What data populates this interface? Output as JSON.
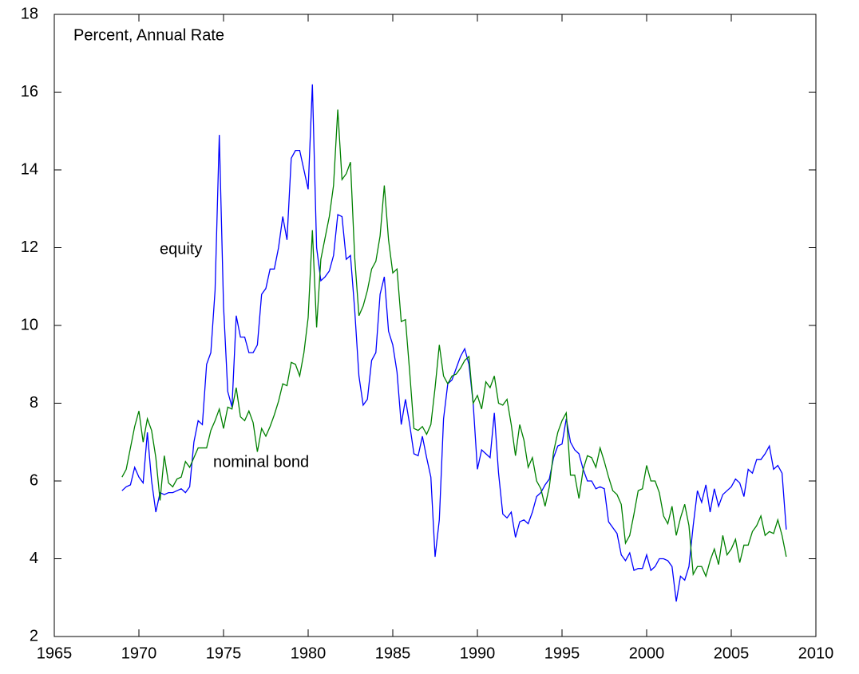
{
  "chart_data": {
    "type": "line",
    "title": "Percent, Annual Rate",
    "annotations": [
      "equity",
      "nominal bond"
    ],
    "x": [
      1969,
      1969.25,
      1969.5,
      1969.75,
      1970,
      1970.25,
      1970.5,
      1970.75,
      1971,
      1971.25,
      1971.5,
      1971.75,
      1972,
      1972.25,
      1972.5,
      1972.75,
      1973,
      1973.25,
      1973.5,
      1973.75,
      1974,
      1974.25,
      1974.5,
      1974.75,
      1975,
      1975.25,
      1975.5,
      1975.75,
      1976,
      1976.25,
      1976.5,
      1976.75,
      1977,
      1977.25,
      1977.5,
      1977.75,
      1978,
      1978.25,
      1978.5,
      1978.75,
      1979,
      1979.25,
      1979.5,
      1979.75,
      1980,
      1980.25,
      1980.5,
      1980.75,
      1981,
      1981.25,
      1981.5,
      1981.75,
      1982,
      1982.25,
      1982.5,
      1982.75,
      1983,
      1983.25,
      1983.5,
      1983.75,
      1984,
      1984.25,
      1984.5,
      1984.75,
      1985,
      1985.25,
      1985.5,
      1985.75,
      1986,
      1986.25,
      1986.5,
      1986.75,
      1987,
      1987.25,
      1987.5,
      1987.75,
      1988,
      1988.25,
      1988.5,
      1988.75,
      1989,
      1989.25,
      1989.5,
      1989.75,
      1990,
      1990.25,
      1990.5,
      1990.75,
      1991,
      1991.25,
      1991.5,
      1991.75,
      1992,
      1992.25,
      1992.5,
      1992.75,
      1993,
      1993.25,
      1993.5,
      1993.75,
      1994,
      1994.25,
      1994.5,
      1994.75,
      1995,
      1995.25,
      1995.5,
      1995.75,
      1996,
      1996.25,
      1996.5,
      1996.75,
      1997,
      1997.25,
      1997.5,
      1997.75,
      1998,
      1998.25,
      1998.5,
      1998.75,
      1999,
      1999.25,
      1999.5,
      1999.75,
      2000,
      2000.25,
      2000.5,
      2000.75,
      2001,
      2001.25,
      2001.5,
      2001.75,
      2002,
      2002.25,
      2002.5,
      2002.75,
      2003,
      2003.25,
      2003.5,
      2003.75,
      2004,
      2004.25,
      2004.5,
      2004.75,
      2005,
      2005.25,
      2005.5,
      2005.75,
      2006,
      2006.25,
      2006.5,
      2006.75,
      2007,
      2007.25,
      2007.5,
      2007.75,
      2008,
      2008.25
    ],
    "series": [
      {
        "color": "#0000ff",
        "values": [
          5.75,
          5.85,
          5.9,
          6.35,
          6.1,
          5.95,
          7.25,
          6.0,
          5.2,
          5.7,
          5.65,
          5.7,
          5.7,
          5.75,
          5.8,
          5.7,
          5.85,
          7.0,
          7.55,
          7.45,
          9.0,
          9.3,
          10.9,
          14.9,
          10.5,
          8.3,
          7.9,
          10.25,
          9.7,
          9.7,
          9.3,
          9.3,
          9.5,
          10.8,
          10.95,
          11.45,
          11.45,
          12.0,
          12.8,
          12.2,
          14.3,
          14.5,
          14.5,
          14.0,
          13.5,
          16.2,
          12.0,
          11.15,
          11.25,
          11.4,
          11.8,
          12.85,
          12.8,
          11.7,
          11.8,
          10.4,
          8.7,
          7.95,
          8.1,
          9.1,
          9.3,
          10.8,
          11.25,
          9.85,
          9.5,
          8.8,
          7.45,
          8.1,
          7.45,
          6.7,
          6.65,
          7.15,
          6.6,
          6.1,
          4.05,
          5.0,
          7.6,
          8.5,
          8.6,
          8.9,
          9.2,
          9.4,
          9.0,
          8.0,
          6.3,
          6.8,
          6.7,
          6.6,
          7.75,
          6.2,
          5.15,
          5.05,
          5.2,
          4.55,
          4.95,
          5.0,
          4.9,
          5.2,
          5.6,
          5.7,
          5.9,
          6.05,
          6.6,
          6.9,
          6.95,
          7.6,
          7.0,
          6.8,
          6.7,
          6.3,
          6.0,
          6.0,
          5.8,
          5.85,
          5.8,
          4.95,
          4.8,
          4.65,
          4.1,
          3.95,
          4.15,
          3.7,
          3.75,
          3.75,
          4.1,
          3.7,
          3.8,
          4.0,
          4.0,
          3.95,
          3.8,
          2.9,
          3.55,
          3.45,
          3.8,
          4.85,
          5.75,
          5.45,
          5.9,
          5.2,
          5.8,
          5.35,
          5.65,
          5.75,
          5.85,
          6.05,
          5.95,
          5.6,
          6.3,
          6.2,
          6.55,
          6.55,
          6.7,
          6.9,
          6.3,
          6.4,
          6.2,
          4.75
        ]
      },
      {
        "color": "#008000",
        "values": [
          6.1,
          6.3,
          6.85,
          7.4,
          7.8,
          7.0,
          7.6,
          7.3,
          6.6,
          5.5,
          6.65,
          5.95,
          5.85,
          6.05,
          6.1,
          6.5,
          6.35,
          6.6,
          6.85,
          6.85,
          6.85,
          7.3,
          7.55,
          7.85,
          7.35,
          7.9,
          7.85,
          8.4,
          7.65,
          7.55,
          7.8,
          7.5,
          6.75,
          7.35,
          7.15,
          7.4,
          7.7,
          8.05,
          8.5,
          8.45,
          9.05,
          9.0,
          8.7,
          9.3,
          10.2,
          12.45,
          9.95,
          11.7,
          12.25,
          12.8,
          13.6,
          15.55,
          13.75,
          13.9,
          14.2,
          11.75,
          10.25,
          10.5,
          10.9,
          11.45,
          11.65,
          12.3,
          13.6,
          12.2,
          11.35,
          11.45,
          10.1,
          10.15,
          8.8,
          7.35,
          7.3,
          7.4,
          7.2,
          7.45,
          8.4,
          9.5,
          8.7,
          8.5,
          8.7,
          8.75,
          8.9,
          9.1,
          9.2,
          8.0,
          8.2,
          7.85,
          8.55,
          8.4,
          8.7,
          8.0,
          7.95,
          8.1,
          7.45,
          6.65,
          7.45,
          7.05,
          6.35,
          6.6,
          6.0,
          5.8,
          5.35,
          5.85,
          6.75,
          7.25,
          7.55,
          7.75,
          6.15,
          6.15,
          5.55,
          6.3,
          6.65,
          6.6,
          6.35,
          6.85,
          6.5,
          6.1,
          5.75,
          5.65,
          5.4,
          4.4,
          4.6,
          5.15,
          5.75,
          5.8,
          6.4,
          6.0,
          6.0,
          5.7,
          5.1,
          4.9,
          5.35,
          4.6,
          5.05,
          5.4,
          4.85,
          3.6,
          3.8,
          3.8,
          3.55,
          3.95,
          4.25,
          3.85,
          4.6,
          4.1,
          4.25,
          4.5,
          3.9,
          4.35,
          4.35,
          4.7,
          4.85,
          5.1,
          4.6,
          4.7,
          4.65,
          5.0,
          4.6,
          4.05
        ]
      }
    ],
    "xlim": [
      1965,
      2010
    ],
    "xticks": [
      1965,
      1970,
      1975,
      1980,
      1985,
      1990,
      1995,
      2000,
      2005,
      2010
    ],
    "ylim": [
      2,
      18
    ],
    "yticks": [
      2,
      4,
      6,
      8,
      10,
      12,
      14,
      16,
      18
    ]
  }
}
